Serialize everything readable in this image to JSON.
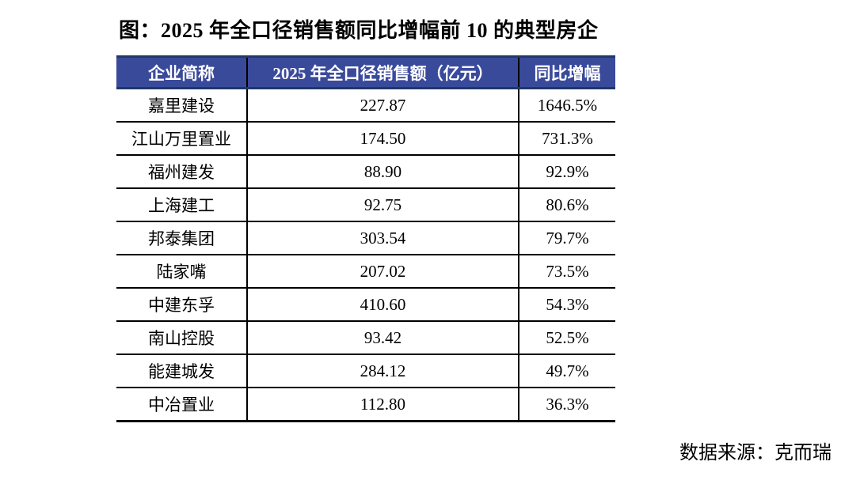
{
  "title": "图：2025 年全口径销售额同比增幅前 10 的典型房企",
  "table": {
    "headers": [
      "企业简称",
      "2025 年全口径销售额（亿元）",
      "同比增幅"
    ],
    "rows": [
      {
        "company": "嘉里建设",
        "sales": "227.87",
        "growth": "1646.5%"
      },
      {
        "company": "江山万里置业",
        "sales": "174.50",
        "growth": "731.3%"
      },
      {
        "company": "福州建发",
        "sales": "88.90",
        "growth": "92.9%"
      },
      {
        "company": "上海建工",
        "sales": "92.75",
        "growth": "80.6%"
      },
      {
        "company": "邦泰集团",
        "sales": "303.54",
        "growth": "79.7%"
      },
      {
        "company": "陆家嘴",
        "sales": "207.02",
        "growth": "73.5%"
      },
      {
        "company": "中建东孚",
        "sales": "410.60",
        "growth": "54.3%"
      },
      {
        "company": "南山控股",
        "sales": "93.42",
        "growth": "52.5%"
      },
      {
        "company": "能建城发",
        "sales": "284.12",
        "growth": "49.7%"
      },
      {
        "company": "中冶置业",
        "sales": "112.80",
        "growth": "36.3%"
      }
    ]
  },
  "footer": {
    "source": "数据来源：克而瑞"
  },
  "colors": {
    "header_bg": "#3A4A9B",
    "header_accent_border": "#1F3864",
    "header_text": "#FFFFFF",
    "body_border": "#000000",
    "body_text": "#000000",
    "page_bg": "#FFFFFF"
  }
}
